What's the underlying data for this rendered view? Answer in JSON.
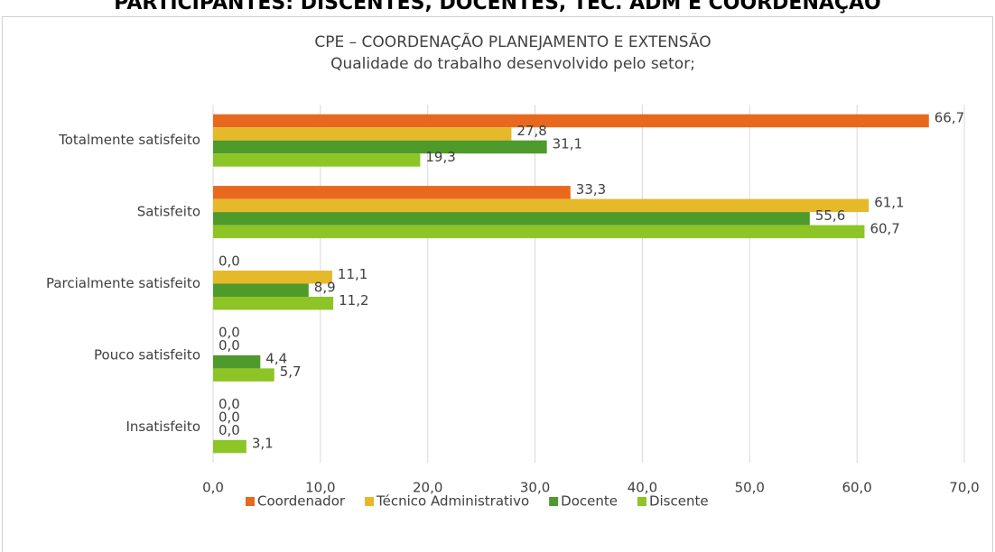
{
  "page_title": "PARTICIPANTES: DISCENTES, DOCENTES, TEC. ADM E COORDENAÇÃO",
  "chart_data": {
    "type": "hbar",
    "title": "CPE – COORDENAÇÃO PLANEJAMENTO E EXTENSÃO",
    "subtitle": "Qualidade do trabalho desenvolvido pelo setor;",
    "categories": [
      "Totalmente satisfeito",
      "Satisfeito",
      "Parcialmente satisfeito",
      "Pouco satisfeito",
      "Insatisfeito"
    ],
    "series": [
      {
        "name": "Coordenador",
        "color": "#e8691d",
        "values": [
          66.7,
          33.3,
          0,
          0,
          0
        ],
        "value_labels": [
          "66,7",
          "33,3",
          "0,0",
          "0,0",
          "0,0"
        ]
      },
      {
        "name": "Técnico Administrativo",
        "color": "#e6b92a",
        "values": [
          27.8,
          61.1,
          11.1,
          0,
          0
        ],
        "value_labels": [
          "27,8",
          "61,1",
          "11,1",
          "0,0",
          "0,0"
        ]
      },
      {
        "name": "Docente",
        "color": "#4e9a2b",
        "values": [
          31.1,
          55.6,
          8.9,
          4.4,
          0
        ],
        "value_labels": [
          "31,1",
          "55,6",
          "8,9",
          "4,4",
          "0,0"
        ]
      },
      {
        "name": "Discente",
        "color": "#8dc426",
        "values": [
          19.3,
          60.7,
          11.2,
          5.7,
          3.1
        ],
        "value_labels": [
          "19,3",
          "60,7",
          "11,2",
          "5,7",
          "3,1"
        ]
      }
    ],
    "xlim": [
      0,
      70
    ],
    "xticks": [
      {
        "value": 0,
        "label": "0,0"
      },
      {
        "value": 10,
        "label": "10,0"
      },
      {
        "value": 20,
        "label": "20,0"
      },
      {
        "value": 30,
        "label": "30,0"
      },
      {
        "value": 40,
        "label": "40,0"
      },
      {
        "value": 50,
        "label": "50,0"
      },
      {
        "value": 60,
        "label": "60,0"
      },
      {
        "value": 70,
        "label": "70,0"
      }
    ],
    "grid": true,
    "legend": "bottom"
  }
}
